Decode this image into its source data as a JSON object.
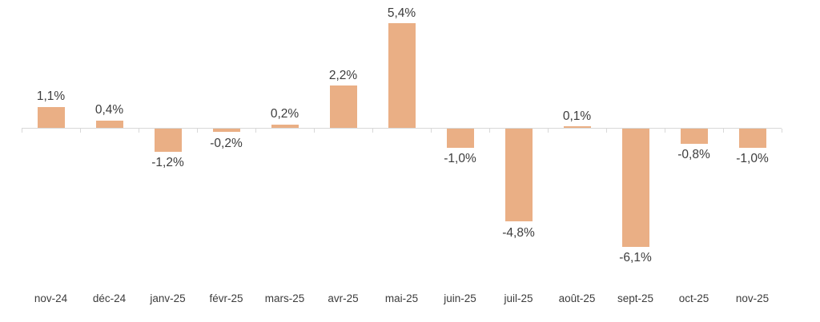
{
  "chart_data": {
    "type": "bar",
    "title": "",
    "xlabel": "",
    "ylabel": "",
    "grid": false,
    "legend": "none",
    "ylim": [
      -7,
      6
    ],
    "categories": [
      "nov-24",
      "déc-24",
      "janv-25",
      "févr-25",
      "mars-25",
      "avr-25",
      "mai-25",
      "juin-25",
      "juil-25",
      "août-25",
      "sept-25",
      "oct-25",
      "nov-25"
    ],
    "values": [
      1.1,
      0.4,
      -1.2,
      -0.2,
      0.2,
      2.2,
      5.4,
      -1.0,
      -4.8,
      0.1,
      -6.1,
      -0.8,
      -1.0
    ],
    "value_labels": [
      "1,1%",
      "0,4%",
      "-1,2%",
      "-0,2%",
      "0,2%",
      "2,2%",
      "5,4%",
      "-1,0%",
      "-4,8%",
      "0,1%",
      "-6,1%",
      "-0,8%",
      "-1,0%"
    ],
    "bar_color": "#eaaf85",
    "axis_color": "#d8d8d8",
    "label_color": "#3c3c3c"
  }
}
